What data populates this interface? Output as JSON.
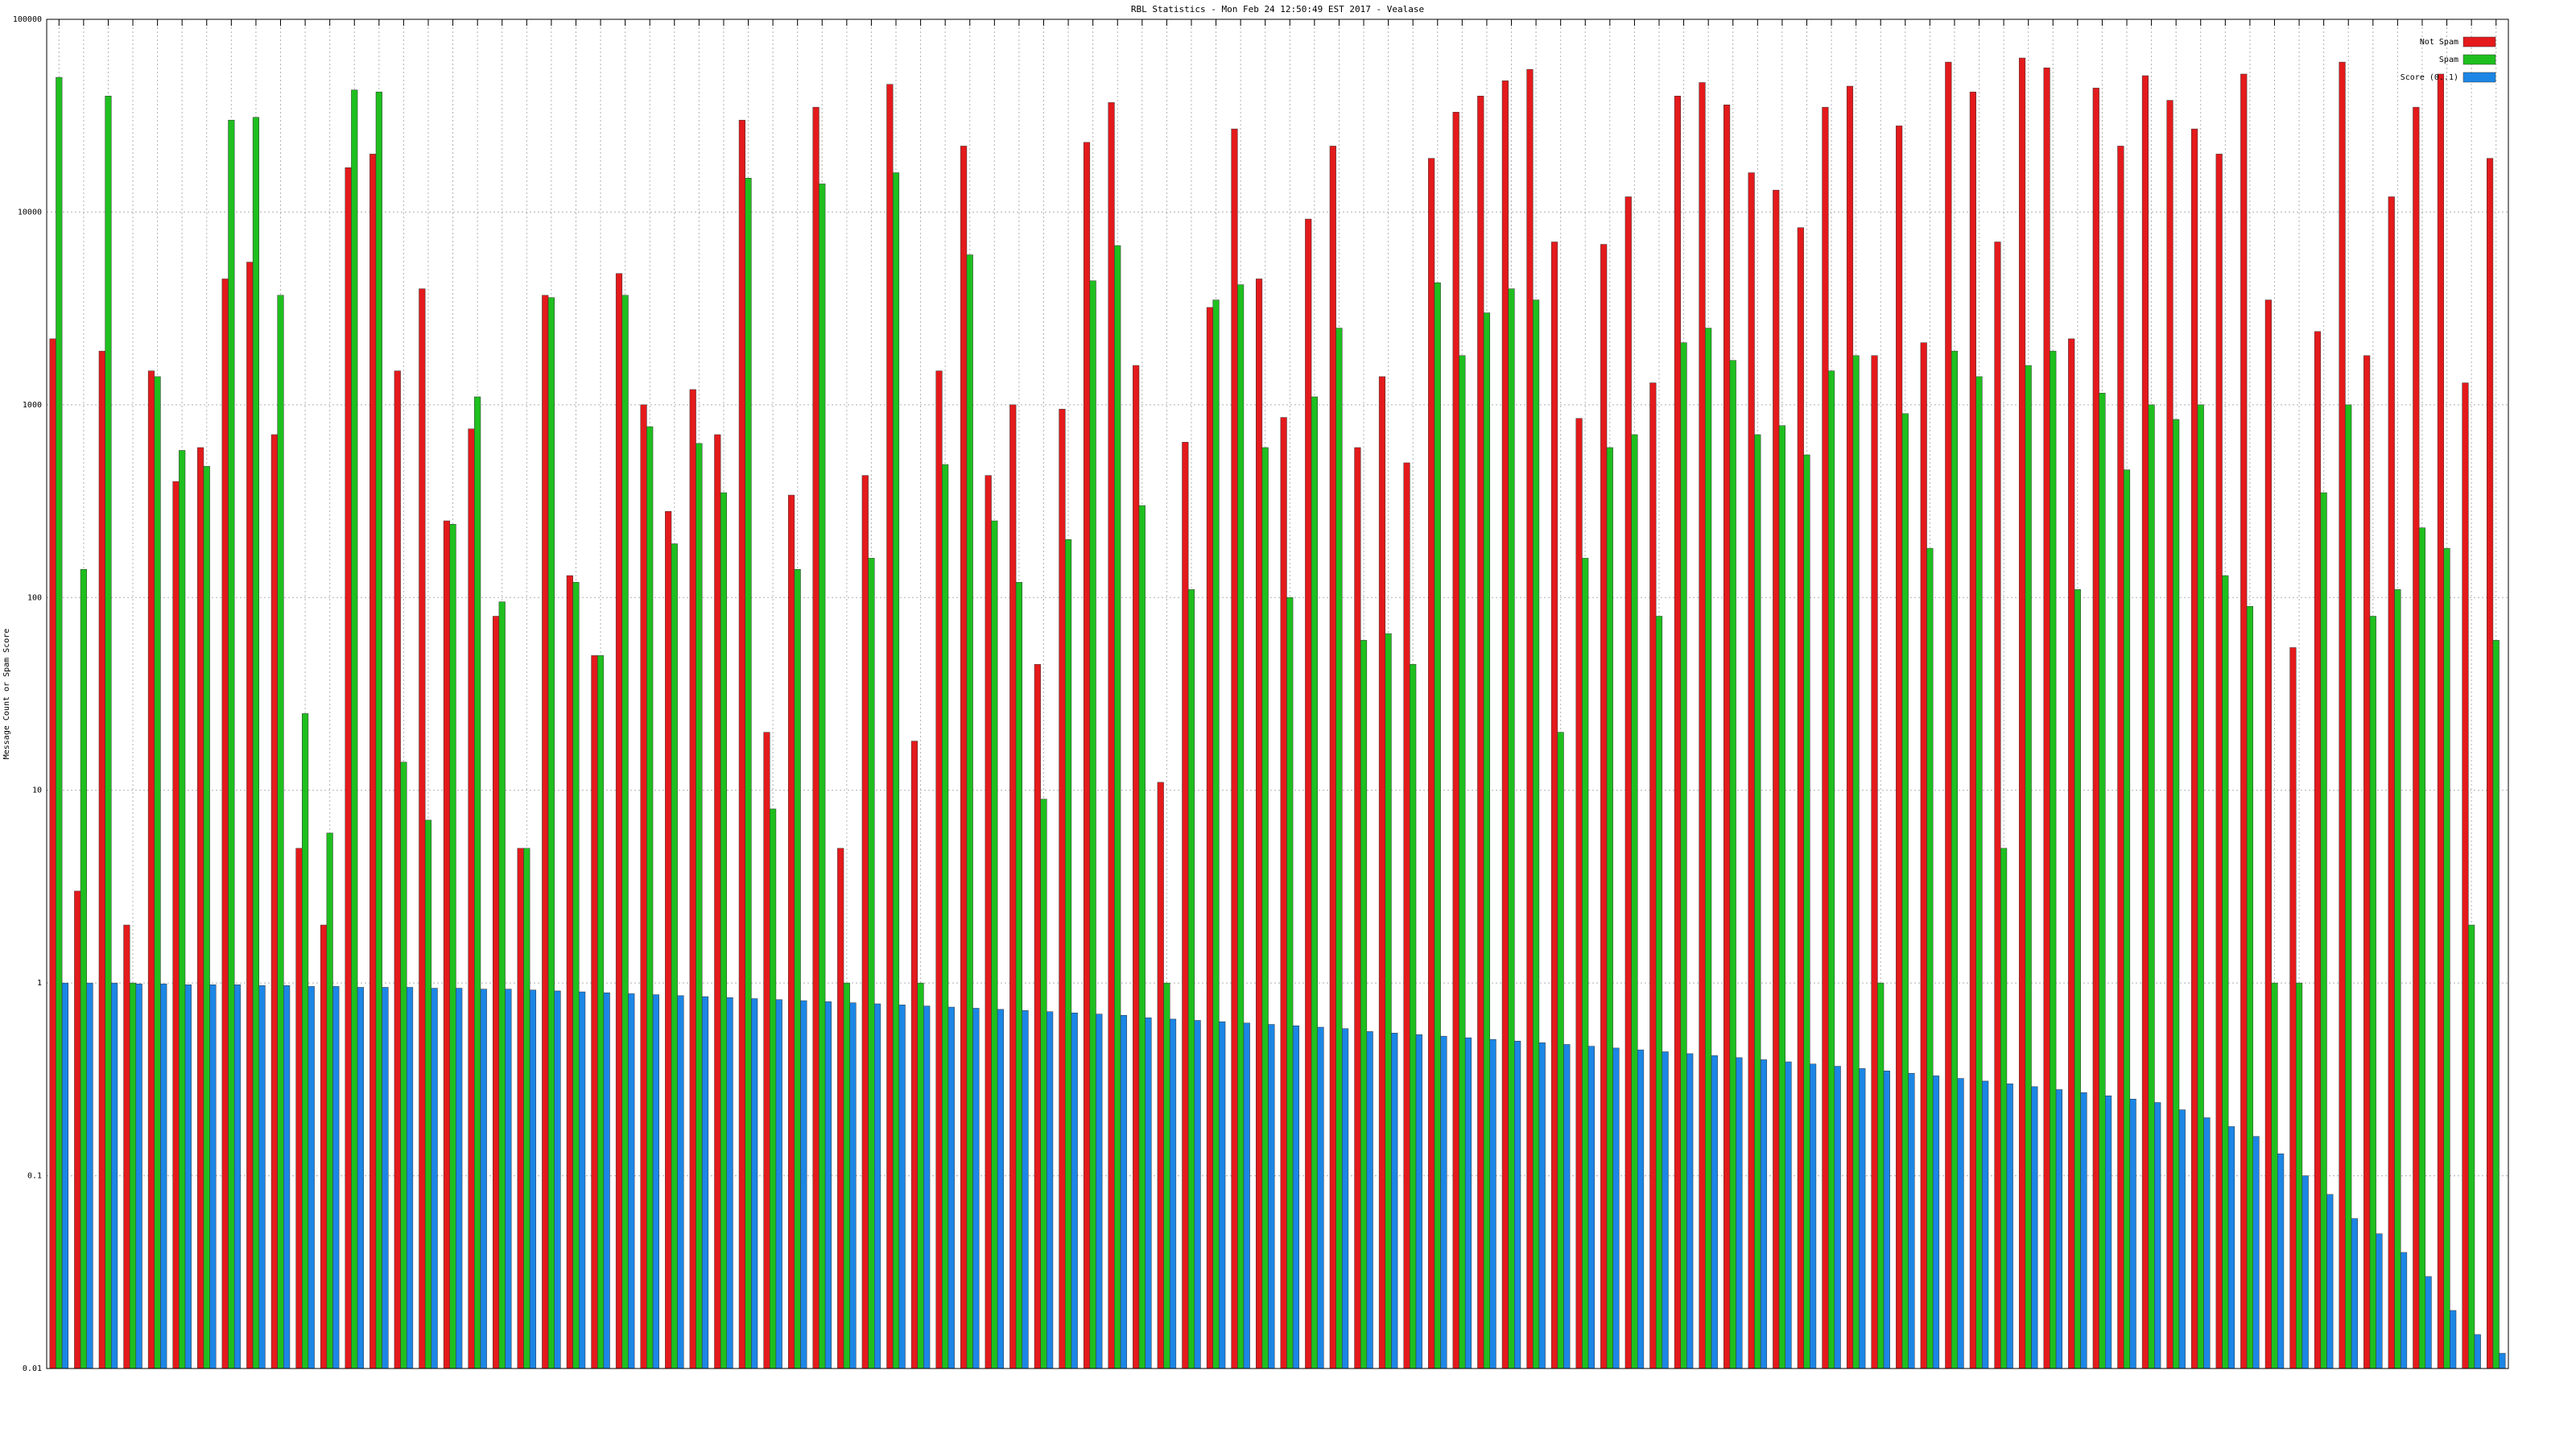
{
  "chart_data": {
    "type": "bar",
    "title": "RBL Statistics - Mon Feb 24 12:50:49 EST 2017 - Vealase",
    "ylabel": "Message Count or Spam Score",
    "yscale": "log",
    "ylim": [
      0.01,
      100000
    ],
    "yticks": [
      0.01,
      0.1,
      1,
      10,
      100,
      1000,
      10000,
      100000
    ],
    "grid": true,
    "legend": "upper right",
    "categories": [
      null,
      null,
      null,
      null,
      null,
      null,
      null,
      null,
      null,
      null,
      null,
      null,
      null,
      null,
      null,
      null,
      null,
      null,
      null,
      null,
      null,
      null,
      null,
      null,
      null,
      null,
      null,
      null,
      null,
      null,
      null,
      null,
      null,
      null,
      null,
      null,
      null,
      null,
      null,
      null,
      null,
      null,
      null,
      null,
      null,
      null,
      null,
      null,
      null,
      null,
      null,
      null,
      null,
      null,
      null,
      null,
      null,
      null,
      null,
      null,
      null,
      null,
      null,
      null,
      null,
      null,
      null,
      null,
      null,
      null,
      null,
      null,
      null,
      null,
      null,
      null,
      null,
      null,
      null,
      null,
      null,
      null,
      null,
      null,
      null,
      null,
      null,
      null,
      null,
      null,
      null,
      null,
      null,
      null,
      null,
      null,
      null,
      null,
      null,
      null
    ],
    "series": [
      {
        "name": "Not Spam",
        "color": "#e41a1c",
        "values": [
          2200,
          3,
          1900,
          2,
          1500,
          400,
          600,
          4500,
          5500,
          700,
          5,
          2,
          17000,
          20000,
          1500,
          4000,
          250,
          750,
          80,
          5,
          3700,
          130,
          50,
          4800,
          1000,
          280,
          1200,
          700,
          30000,
          20,
          340,
          35000,
          5,
          430,
          46000,
          18,
          1500,
          22000,
          430,
          1000,
          45,
          950,
          23000,
          37000,
          1600,
          11,
          640,
          3200,
          27000,
          4500,
          860,
          9200,
          22000,
          600,
          1400,
          500,
          19000,
          33000,
          40000,
          48000,
          55000,
          7000,
          850,
          6800,
          12000,
          1300,
          40000,
          47000,
          36000,
          16000,
          13000,
          8300,
          35000,
          45000,
          1800,
          28000,
          2100,
          60000,
          42000,
          7000,
          63000,
          56000,
          2200,
          44000,
          22000,
          51000,
          38000,
          27000,
          20000,
          52000,
          3500,
          55,
          2400,
          60000,
          1800,
          12000,
          35000,
          52000,
          1300,
          19000
        ]
      },
      {
        "name": "Spam",
        "color": "#1fbf1f",
        "values": [
          50000,
          140,
          40000,
          1,
          1400,
          580,
          480,
          30000,
          31000,
          3700,
          25,
          6,
          43000,
          42000,
          14,
          7,
          240,
          1100,
          95,
          5,
          3600,
          120,
          50,
          3700,
          770,
          190,
          630,
          350,
          15000,
          8,
          140,
          14000,
          1,
          160,
          16000,
          1,
          490,
          6000,
          250,
          120,
          9,
          200,
          4400,
          6700,
          300,
          1,
          110,
          3500,
          4200,
          600,
          100,
          1100,
          2500,
          60,
          65,
          45,
          4300,
          1800,
          3000,
          4000,
          3500,
          20,
          160,
          600,
          700,
          80,
          2100,
          2500,
          1700,
          700,
          780,
          550,
          1500,
          1800,
          1,
          900,
          180,
          1900,
          1400,
          5,
          1600,
          1900,
          110,
          1150,
          460,
          1000,
          840,
          1000,
          130,
          90,
          1,
          1,
          350,
          1000,
          80,
          110,
          230,
          180,
          2,
          60
        ]
      },
      {
        "name": "Score (0..1)",
        "color": "#1c86e6",
        "values": [
          1,
          1,
          1,
          0.99,
          0.99,
          0.98,
          0.98,
          0.98,
          0.97,
          0.97,
          0.96,
          0.96,
          0.95,
          0.95,
          0.95,
          0.94,
          0.94,
          0.93,
          0.93,
          0.92,
          0.91,
          0.9,
          0.89,
          0.88,
          0.87,
          0.86,
          0.85,
          0.84,
          0.83,
          0.82,
          0.81,
          0.8,
          0.79,
          0.78,
          0.77,
          0.76,
          0.75,
          0.74,
          0.73,
          0.72,
          0.71,
          0.7,
          0.69,
          0.68,
          0.66,
          0.65,
          0.64,
          0.63,
          0.62,
          0.61,
          0.6,
          0.59,
          0.58,
          0.56,
          0.55,
          0.54,
          0.53,
          0.52,
          0.51,
          0.5,
          0.49,
          0.48,
          0.47,
          0.46,
          0.45,
          0.44,
          0.43,
          0.42,
          0.41,
          0.4,
          0.39,
          0.38,
          0.37,
          0.36,
          0.35,
          0.34,
          0.33,
          0.32,
          0.31,
          0.3,
          0.29,
          0.28,
          0.27,
          0.26,
          0.25,
          0.24,
          0.22,
          0.2,
          0.18,
          0.16,
          0.13,
          0.1,
          0.08,
          0.06,
          0.05,
          0.04,
          0.03,
          0.02,
          0.015,
          0.012
        ]
      }
    ]
  }
}
